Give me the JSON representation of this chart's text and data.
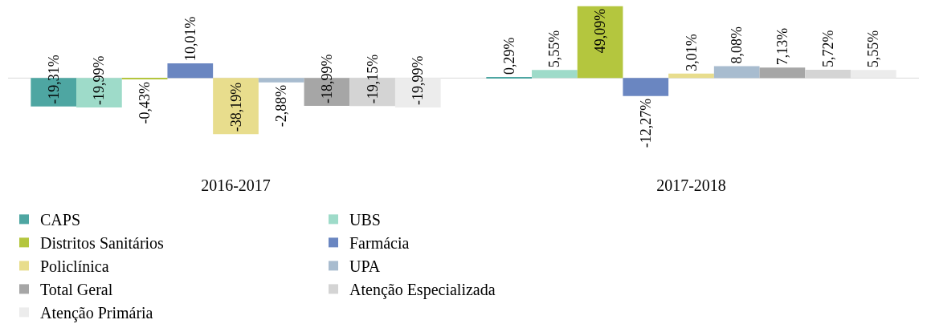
{
  "chart_data": {
    "type": "bar",
    "categories": [
      "2016-2017",
      "2017-2018"
    ],
    "series": [
      {
        "name": "CAPS",
        "color": "#4ea6a2",
        "values": [
          -19.31,
          0.29
        ],
        "value_labels": [
          "-19,31%",
          "0,29%"
        ]
      },
      {
        "name": "UBS",
        "color": "#9edbc9",
        "values": [
          -19.99,
          5.55
        ],
        "value_labels": [
          "-19,99%",
          "5,55%"
        ]
      },
      {
        "name": "Distritos Sanitários",
        "color": "#b4c63e",
        "values": [
          -0.43,
          49.09
        ],
        "value_labels": [
          "-0,43%",
          "49,09%"
        ]
      },
      {
        "name": "Farmácia",
        "color": "#6a86c1",
        "values": [
          10.01,
          -12.27
        ],
        "value_labels": [
          "10,01%",
          "-12,27%"
        ]
      },
      {
        "name": "Policlínica",
        "color": "#e8dd8d",
        "values": [
          -38.19,
          3.01
        ],
        "value_labels": [
          "-38,19%",
          "3,01%"
        ]
      },
      {
        "name": "UPA",
        "color": "#a8bccf",
        "values": [
          -2.88,
          8.08
        ],
        "value_labels": [
          "-2,88%",
          "8,08%"
        ]
      },
      {
        "name": "Total Geral",
        "color": "#a6a6a6",
        "values": [
          -18.99,
          7.13
        ],
        "value_labels": [
          "-18,99%",
          "7,13%"
        ]
      },
      {
        "name": "Atenção Especializada",
        "color": "#d4d4d4",
        "values": [
          -19.15,
          5.72
        ],
        "value_labels": [
          "-19,15%",
          "5,72%"
        ]
      },
      {
        "name": "Atenção Primária",
        "color": "#ececec",
        "values": [
          -19.99,
          5.55
        ],
        "value_labels": [
          "-19,99%",
          "5,55%"
        ]
      }
    ],
    "legend": "bottom",
    "grid": false
  }
}
